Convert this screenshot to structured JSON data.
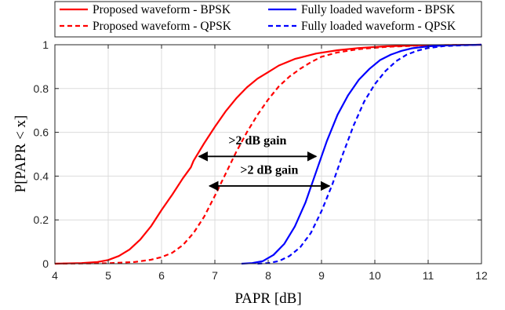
{
  "chart_data": {
    "type": "line",
    "title": "",
    "xlabel": "PAPR [dB]",
    "ylabel": "P[PAPR < x]",
    "xlim": [
      4,
      12
    ],
    "ylim": [
      0,
      1
    ],
    "xticks": [
      4,
      5,
      6,
      7,
      8,
      9,
      10,
      11,
      12
    ],
    "yticks": [
      0,
      0.2,
      0.4,
      0.6,
      0.8,
      1
    ],
    "grid": true,
    "legend_position": "top",
    "series": [
      {
        "name": "Proposed waveform - BPSK",
        "color": "#ff0000",
        "dash": "solid",
        "x": [
          4.0,
          4.5,
          4.8,
          5.0,
          5.2,
          5.4,
          5.6,
          5.8,
          6.0,
          6.2,
          6.4,
          6.55,
          6.6,
          6.8,
          7.0,
          7.2,
          7.4,
          7.6,
          7.8,
          8.0,
          8.2,
          8.5,
          8.9,
          9.3,
          9.7,
          10.2,
          10.8,
          11.5,
          12.0
        ],
        "y": [
          0.0,
          0.003,
          0.008,
          0.017,
          0.035,
          0.065,
          0.11,
          0.17,
          0.245,
          0.315,
          0.39,
          0.44,
          0.47,
          0.55,
          0.625,
          0.695,
          0.755,
          0.805,
          0.845,
          0.875,
          0.905,
          0.935,
          0.96,
          0.975,
          0.985,
          0.993,
          0.997,
          0.999,
          1.0
        ]
      },
      {
        "name": "Proposed waveform - QPSK",
        "color": "#ff0000",
        "dash": "dashed",
        "x": [
          4.0,
          5.0,
          5.5,
          5.8,
          6.0,
          6.2,
          6.4,
          6.6,
          6.8,
          7.0,
          7.2,
          7.4,
          7.6,
          7.8,
          8.0,
          8.2,
          8.4,
          8.6,
          8.8,
          9.0,
          9.3,
          9.7,
          10.2,
          10.8,
          11.5,
          12.0
        ],
        "y": [
          0.0,
          0.002,
          0.008,
          0.018,
          0.03,
          0.05,
          0.085,
          0.14,
          0.215,
          0.31,
          0.41,
          0.51,
          0.6,
          0.68,
          0.75,
          0.81,
          0.855,
          0.89,
          0.92,
          0.945,
          0.965,
          0.98,
          0.99,
          0.996,
          0.999,
          1.0
        ]
      },
      {
        "name": "Fully loaded waveform - BPSK",
        "color": "#0000ff",
        "dash": "solid",
        "x": [
          7.5,
          7.7,
          7.9,
          8.1,
          8.3,
          8.5,
          8.7,
          8.9,
          9.1,
          9.3,
          9.5,
          9.7,
          9.9,
          10.1,
          10.3,
          10.5,
          10.7,
          11.0,
          11.4,
          12.0
        ],
        "y": [
          0.0,
          0.003,
          0.012,
          0.04,
          0.09,
          0.17,
          0.28,
          0.42,
          0.56,
          0.68,
          0.77,
          0.84,
          0.89,
          0.93,
          0.955,
          0.972,
          0.984,
          0.993,
          0.998,
          1.0
        ]
      },
      {
        "name": "Fully loaded waveform - QPSK",
        "color": "#0000ff",
        "dash": "dashed",
        "x": [
          7.8,
          8.0,
          8.2,
          8.4,
          8.6,
          8.8,
          9.0,
          9.2,
          9.4,
          9.6,
          9.8,
          10.0,
          10.2,
          10.4,
          10.6,
          10.8,
          11.0,
          11.3,
          11.7,
          12.0
        ],
        "y": [
          0.0,
          0.003,
          0.012,
          0.035,
          0.075,
          0.14,
          0.24,
          0.36,
          0.5,
          0.63,
          0.74,
          0.82,
          0.88,
          0.925,
          0.955,
          0.973,
          0.985,
          0.994,
          0.998,
          1.0
        ]
      }
    ],
    "annotations": [
      {
        "text": ">2 dB gain",
        "arrow_x": [
          6.7,
          8.9
        ],
        "arrow_y": 0.49,
        "text_x": 7.8,
        "text_y": 0.545
      },
      {
        "text": ">2 dB gain",
        "arrow_x": [
          6.9,
          9.15
        ],
        "arrow_y": 0.355,
        "text_x": 8.02,
        "text_y": 0.41
      }
    ]
  }
}
